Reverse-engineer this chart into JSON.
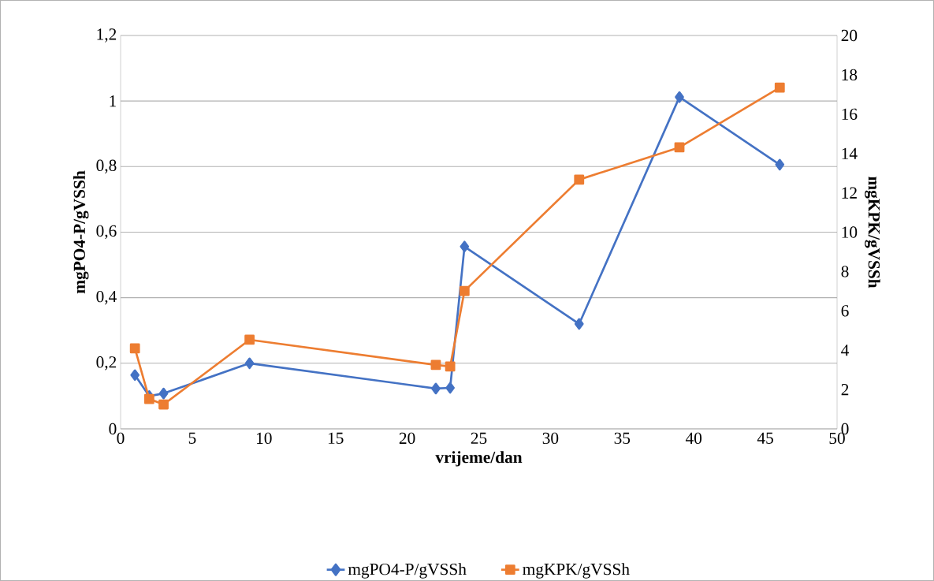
{
  "chart_data": {
    "type": "line",
    "xlabel": "vrijeme/dan",
    "ylabel": "mgPO4-P/gVSSh",
    "y2label": "mgKPK/gVSSh",
    "series": [
      {
        "name": "mgPO4-P/gVSSh",
        "color": "#4472c4",
        "marker": "diamond",
        "x": [
          1,
          2,
          3,
          9,
          22,
          23,
          24,
          32,
          39,
          46
        ],
        "values": [
          0.164,
          0.1,
          0.108,
          0.2,
          0.123,
          0.125,
          0.556,
          0.32,
          1.012,
          0.806
        ]
      },
      {
        "name": "mgKPK/gVSSh",
        "color": "#ed7d31",
        "marker": "square",
        "axis": "y2",
        "x": [
          1,
          2,
          3,
          9,
          22,
          23,
          24,
          32,
          39,
          46
        ],
        "values": [
          4.09,
          1.52,
          1.24,
          4.53,
          3.25,
          3.17,
          7.01,
          12.67,
          14.31,
          17.35
        ]
      }
    ],
    "xlim": [
      0,
      50
    ],
    "xticks": [
      0,
      5,
      10,
      15,
      20,
      25,
      30,
      35,
      40,
      45,
      50
    ],
    "ylim": [
      0,
      1.2
    ],
    "yticks": [
      0,
      {
        "value": 0.2,
        "label": "0,2"
      },
      {
        "value": 0.4,
        "label": "0,4"
      },
      {
        "value": 0.6,
        "label": "0,6"
      },
      {
        "value": 0.8,
        "label": "0,8"
      },
      1,
      {
        "value": 1.2,
        "label": "1,2"
      }
    ],
    "y2lim": [
      0,
      20
    ],
    "y2ticks": [
      0,
      2,
      4,
      6,
      8,
      10,
      12,
      14,
      16,
      18,
      20
    ],
    "grid": "y",
    "legend": "bottom"
  }
}
